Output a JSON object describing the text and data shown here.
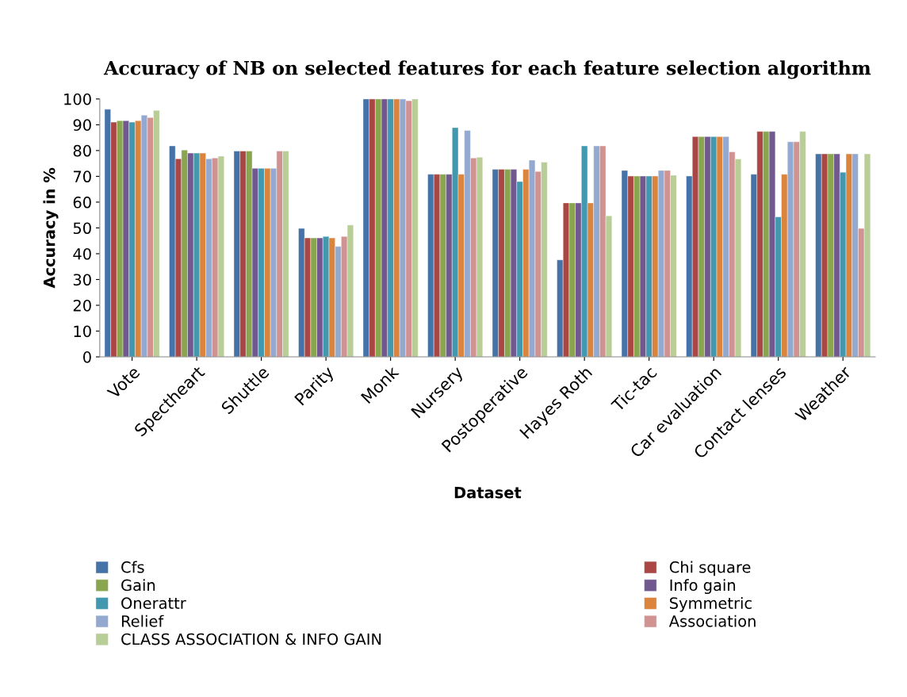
{
  "chart_data": {
    "type": "bar",
    "title": "Accuracy of NB on selected features for each feature selection algorithm",
    "xlabel": "Dataset",
    "ylabel": "Accuracy in %",
    "categories": [
      "Vote",
      "Spectheart",
      "Shuttle",
      "Parity",
      "Monk",
      "Nursery",
      "Postoperative",
      "Hayes Roth",
      "Tic-tac",
      "Car evaluation",
      "Contact lenses",
      "Weather"
    ],
    "ylim": [
      0,
      100
    ],
    "yticks": [
      0,
      10,
      20,
      30,
      40,
      50,
      60,
      70,
      80,
      90,
      100
    ],
    "grid": false,
    "legend": "bottom",
    "series": [
      {
        "name": "Cfs",
        "color": "#4572a7",
        "values": [
          96.0,
          81.8,
          79.8,
          49.8,
          100,
          70.8,
          72.7,
          37.6,
          72.3,
          70.1,
          70.8,
          78.7
        ]
      },
      {
        "name": "Chi square",
        "color": "#aa4643",
        "values": [
          91.0,
          76.8,
          79.8,
          46.1,
          100,
          70.8,
          72.7,
          59.7,
          70.1,
          85.4,
          87.4,
          78.7
        ]
      },
      {
        "name": "Gain",
        "color": "#89a54e",
        "values": [
          91.6,
          80.2,
          79.8,
          46.1,
          100,
          70.8,
          72.7,
          59.7,
          70.1,
          85.4,
          87.4,
          78.7
        ]
      },
      {
        "name": "Info gain",
        "color": "#71588f",
        "values": [
          91.6,
          79.0,
          73.1,
          46.1,
          100,
          70.8,
          72.7,
          59.7,
          70.1,
          85.4,
          87.4,
          78.7
        ]
      },
      {
        "name": "Onerattr",
        "color": "#4198af",
        "values": [
          91.0,
          79.0,
          73.1,
          46.7,
          100,
          88.9,
          68.0,
          81.8,
          70.1,
          85.4,
          54.3,
          71.6
        ]
      },
      {
        "name": "Symmetric",
        "color": "#db843d",
        "values": [
          91.6,
          79.0,
          73.1,
          46.1,
          100,
          70.8,
          72.7,
          59.7,
          70.1,
          85.4,
          70.8,
          78.7
        ]
      },
      {
        "name": "Relief",
        "color": "#93a9cf",
        "values": [
          93.7,
          76.8,
          73.1,
          42.8,
          100,
          87.8,
          76.3,
          81.8,
          72.3,
          85.4,
          83.4,
          78.7
        ]
      },
      {
        "name": "Association",
        "color": "#d19392",
        "values": [
          92.8,
          77.1,
          79.8,
          46.7,
          99.3,
          77.1,
          71.9,
          81.8,
          72.3,
          79.5,
          83.4,
          49.8
        ]
      },
      {
        "name": "CLASS ASSOCIATION & INFO GAIN",
        "color": "#b9cd96",
        "values": [
          95.6,
          77.8,
          79.8,
          51.1,
          100,
          77.4,
          75.5,
          54.7,
          70.4,
          76.7,
          87.4,
          78.7
        ]
      }
    ]
  }
}
